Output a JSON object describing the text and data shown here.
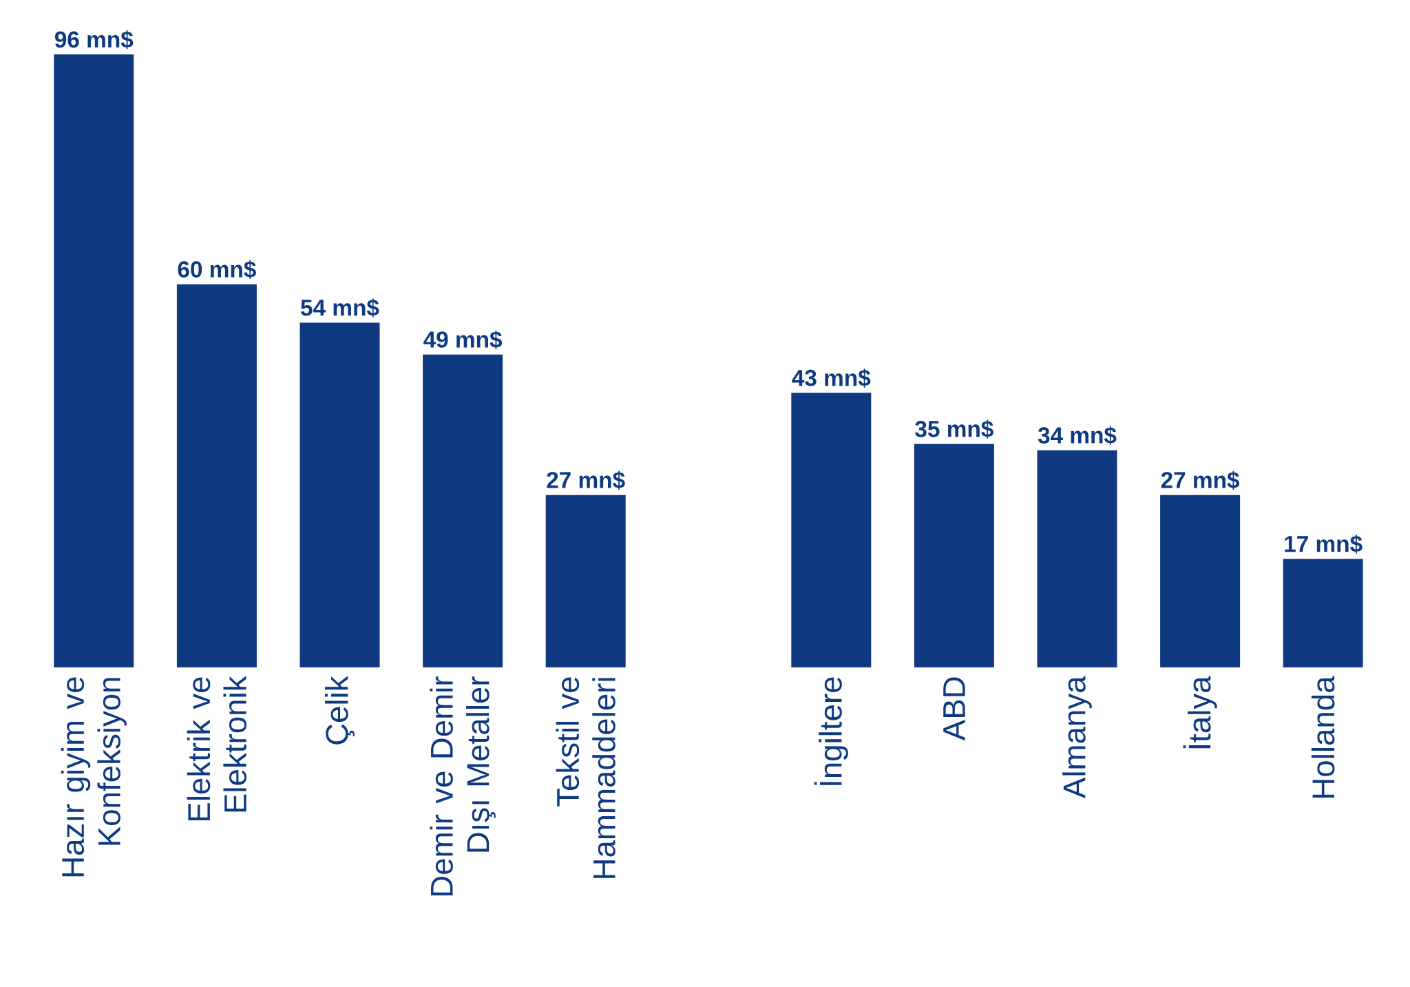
{
  "chart_data": [
    {
      "type": "bar",
      "categories": [
        "Hazır giyim ve Konfeksiyon",
        "Elektrik ve Elektronik",
        "Çelik",
        "Demir ve Demir Dışı Metaller",
        "Tekstil ve Hammaddeleri"
      ],
      "values": [
        96,
        60,
        54,
        49,
        27
      ],
      "value_labels": [
        "96 mn$",
        "60 mn$",
        "54 mn$",
        "49 mn$",
        "27 mn$"
      ],
      "color": "#0f3a82"
    },
    {
      "type": "bar",
      "categories": [
        "İngiltere",
        "ABD",
        "Almanya",
        "İtalya",
        "Hollanda"
      ],
      "values": [
        43,
        35,
        34,
        27,
        17
      ],
      "value_labels": [
        "43 mn$",
        "35 mn$",
        "34 mn$",
        "27 mn$",
        "17 mn$"
      ],
      "color": "#0f3a82"
    }
  ]
}
